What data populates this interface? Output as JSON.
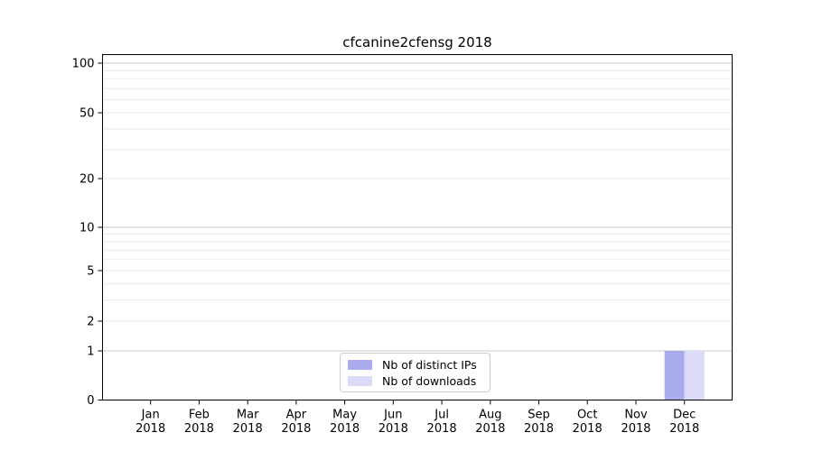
{
  "chart_data": {
    "type": "bar",
    "title": "cfcanine2cfensg 2018",
    "x": {
      "categories": [
        "Jan",
        "Feb",
        "Mar",
        "Apr",
        "May",
        "Jun",
        "Jul",
        "Aug",
        "Sep",
        "Oct",
        "Nov",
        "Dec"
      ],
      "year": "2018"
    },
    "series": [
      {
        "name": "Nb of distinct IPs",
        "color": "#aaaaef",
        "values": [
          0,
          0,
          0,
          0,
          0,
          0,
          0,
          0,
          0,
          0,
          0,
          1
        ]
      },
      {
        "name": "Nb of downloads",
        "color": "#dbdbf8",
        "values": [
          0,
          0,
          0,
          0,
          0,
          0,
          0,
          0,
          0,
          0,
          0,
          1
        ]
      }
    ],
    "yscale": "log1p",
    "ylim": [
      0,
      113
    ],
    "yticks": [
      0,
      1,
      2,
      5,
      10,
      20,
      50,
      100
    ],
    "major_gridlines": [
      1,
      10,
      100
    ],
    "minor_gridlines": [
      2,
      3,
      4,
      5,
      6,
      7,
      8,
      9,
      20,
      30,
      40,
      50,
      60,
      70,
      80,
      90
    ],
    "grid": true,
    "legend": {
      "position": "lower center"
    },
    "colors": {
      "major_grid": "#c9c9c9",
      "minor_grid": "#eaeaea",
      "axis": "#000000",
      "tick_text": "#000000",
      "legend_border": "#cccccc",
      "background": "#ffffff"
    }
  }
}
